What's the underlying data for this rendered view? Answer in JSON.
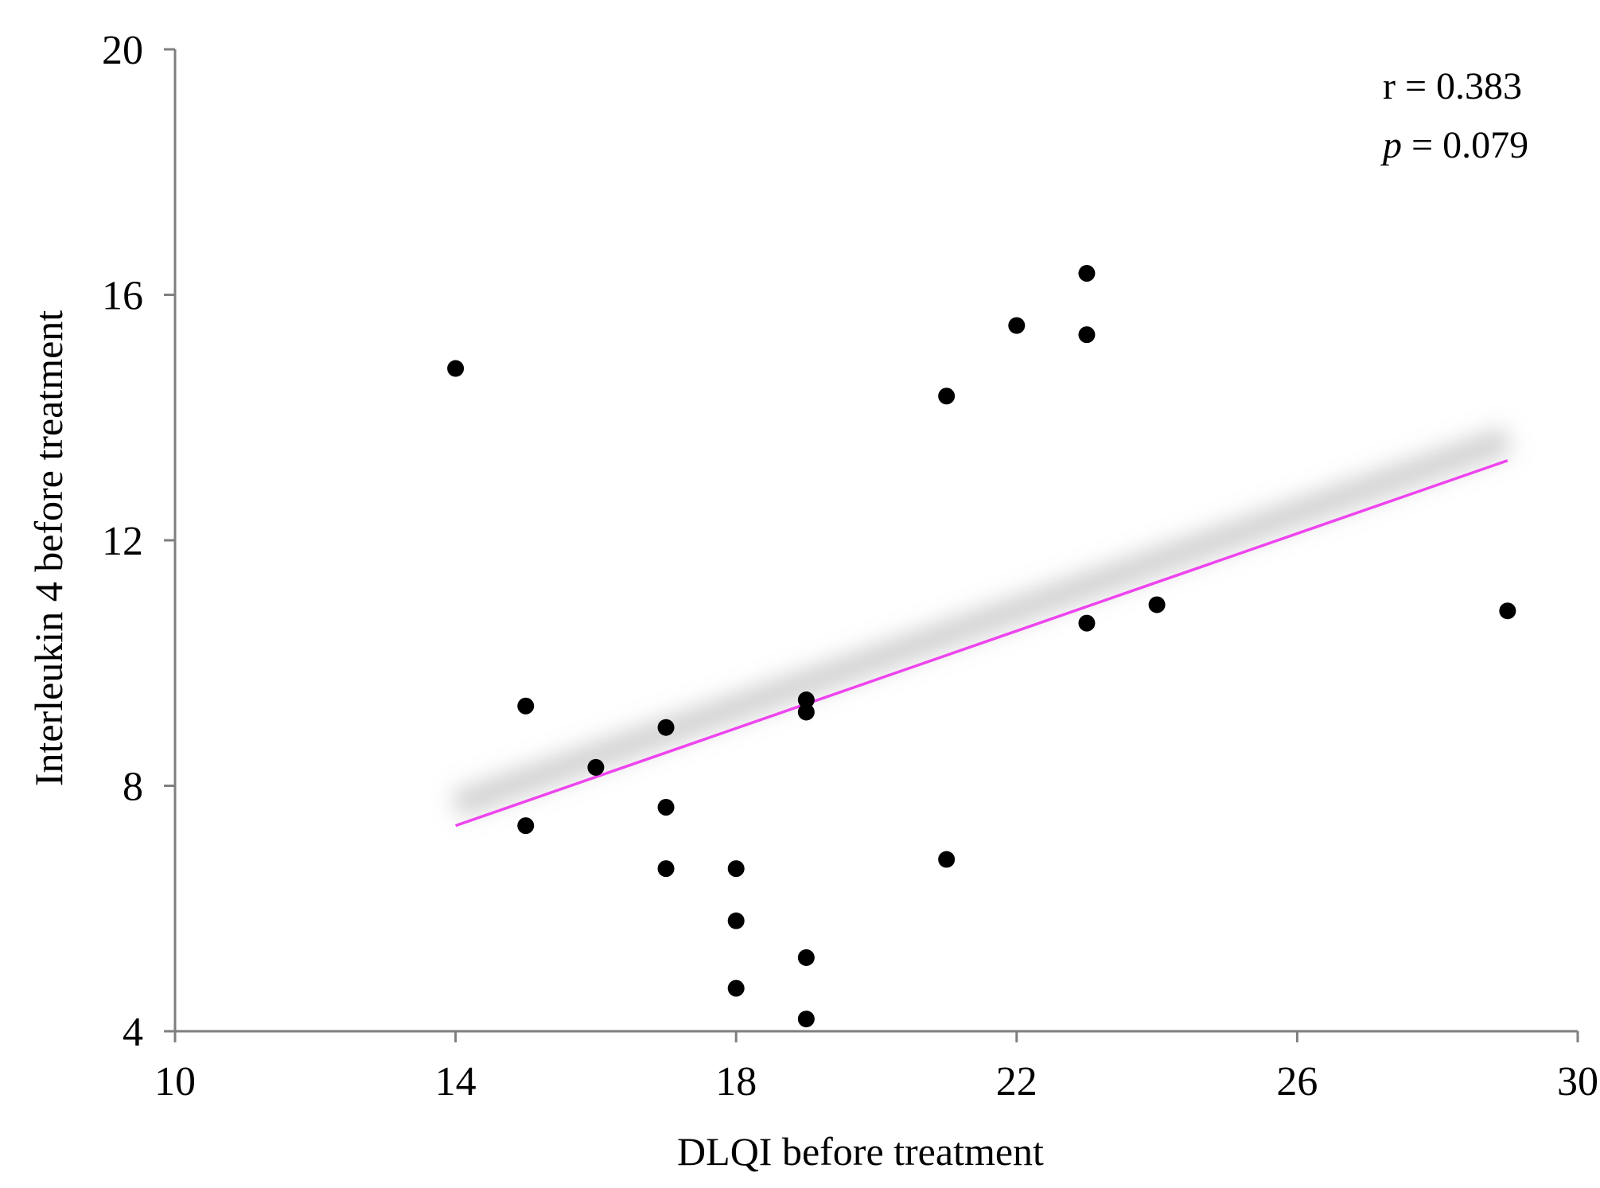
{
  "chart_data": {
    "type": "scatter",
    "title": "",
    "xlabel": "DLQI before treatment",
    "ylabel": "Interleukin 4 before treatment",
    "xlim": [
      10,
      30
    ],
    "ylim": [
      4,
      20
    ],
    "x_ticks": [
      "10",
      "14",
      "18",
      "22",
      "26",
      "30"
    ],
    "y_ticks": [
      "4",
      "8",
      "12",
      "16",
      "20"
    ],
    "x_tick_values": [
      10,
      14,
      18,
      22,
      26,
      30
    ],
    "y_tick_values": [
      4,
      8,
      12,
      16,
      20
    ],
    "grid": false,
    "series": [
      {
        "name": "patients",
        "color": "#000000",
        "points": [
          {
            "x": 14,
            "y": 14.8
          },
          {
            "x": 15,
            "y": 9.3
          },
          {
            "x": 15,
            "y": 7.35
          },
          {
            "x": 16,
            "y": 8.3
          },
          {
            "x": 17,
            "y": 8.95
          },
          {
            "x": 17,
            "y": 7.65
          },
          {
            "x": 17,
            "y": 6.65
          },
          {
            "x": 18,
            "y": 6.65
          },
          {
            "x": 18,
            "y": 5.8
          },
          {
            "x": 18,
            "y": 4.7
          },
          {
            "x": 19,
            "y": 9.4
          },
          {
            "x": 19,
            "y": 9.2
          },
          {
            "x": 19,
            "y": 5.2
          },
          {
            "x": 19,
            "y": 4.2
          },
          {
            "x": 21,
            "y": 14.35
          },
          {
            "x": 21,
            "y": 6.8
          },
          {
            "x": 22,
            "y": 15.5
          },
          {
            "x": 23,
            "y": 16.35
          },
          {
            "x": 23,
            "y": 15.35
          },
          {
            "x": 23,
            "y": 10.65
          },
          {
            "x": 24,
            "y": 10.95
          },
          {
            "x": 29,
            "y": 10.85
          }
        ]
      }
    ],
    "trendline": {
      "color": "#ee44ee",
      "x": [
        14,
        29
      ],
      "y": [
        7.35,
        13.3
      ]
    },
    "annotations": {
      "r_text": "r = 0.383",
      "p_symbol": "p",
      "p_rest": " = 0.079"
    }
  }
}
